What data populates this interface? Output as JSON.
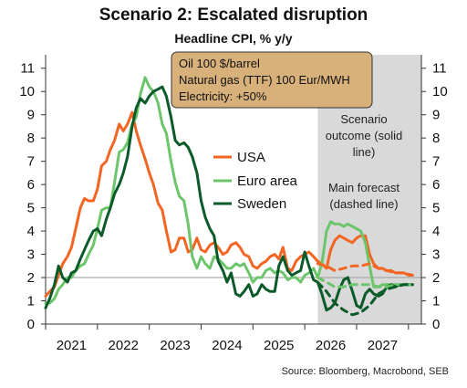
{
  "title": "Scenario 2: Escalated disruption",
  "subtitle": "Headline CPI, % y/y",
  "assumptions": [
    "Oil 100 $/barrel",
    "Natural gas (TTF) 100 Eur/MWH",
    "Electricity: +50%"
  ],
  "shade_note": [
    "Scenario",
    "outcome (solid",
    "line)"
  ],
  "forecast_note": [
    "Main forecast",
    "(dashed line)"
  ],
  "source": "Source: Bloomberg, Macrobond, SEB",
  "colors": {
    "usa": "#f26522",
    "euro": "#6cc56b",
    "sweden": "#0b5a2a",
    "box": "#d7b07a",
    "shade": "#d9d9d9"
  },
  "chart_data": {
    "type": "line",
    "xlim": [
      2020.5,
      2027.75
    ],
    "ylim": [
      0,
      11.5
    ],
    "yticks": [
      0,
      1,
      2,
      3,
      4,
      5,
      6,
      7,
      8,
      9,
      10,
      11
    ],
    "xticks": [
      "2021",
      "2022",
      "2023",
      "2024",
      "2025",
      "2026",
      "2027"
    ],
    "xtick_positions": [
      2021,
      2022,
      2023,
      2024,
      2025,
      2026,
      2027
    ],
    "reference_line": 2,
    "shaded_region": [
      2025.75,
      2027.75
    ],
    "series": [
      {
        "name": "USA",
        "style": "solid",
        "color": "#f26522",
        "x": [
          2020.5,
          2020.58,
          2020.67,
          2020.75,
          2020.83,
          2020.92,
          2021.0,
          2021.08,
          2021.17,
          2021.25,
          2021.33,
          2021.42,
          2021.5,
          2021.58,
          2021.67,
          2021.75,
          2021.83,
          2021.92,
          2022.0,
          2022.08,
          2022.17,
          2022.25,
          2022.33,
          2022.42,
          2022.5,
          2022.58,
          2022.67,
          2022.75,
          2022.83,
          2022.92,
          2023.0,
          2023.08,
          2023.17,
          2023.25,
          2023.33,
          2023.42,
          2023.5,
          2023.58,
          2023.67,
          2023.75,
          2023.83,
          2023.92,
          2024.0,
          2024.08,
          2024.17,
          2024.25,
          2024.33,
          2024.42,
          2024.5,
          2024.58,
          2024.67,
          2024.75,
          2024.83,
          2024.92,
          2025.0,
          2025.08,
          2025.17,
          2025.25,
          2025.33,
          2025.42,
          2025.5,
          2025.58,
          2025.67,
          2025.75,
          2025.83,
          2025.92,
          2026.0,
          2026.08,
          2026.17,
          2026.25,
          2026.33,
          2026.42,
          2026.5,
          2026.58,
          2026.67,
          2026.75,
          2026.83,
          2026.92,
          2027.0,
          2027.08,
          2027.17,
          2027.25,
          2027.33,
          2027.42,
          2027.5,
          2027.58
        ],
        "y": [
          1.2,
          1.4,
          1.6,
          2.1,
          2.6,
          2.9,
          3.3,
          4.1,
          5.0,
          5.4,
          5.3,
          5.3,
          5.8,
          6.8,
          7.0,
          7.5,
          7.9,
          8.6,
          8.3,
          8.6,
          9.1,
          8.3,
          7.7,
          7.1,
          6.5,
          6.0,
          5.2,
          4.9,
          4.0,
          3.1,
          3.2,
          3.7,
          3.7,
          3.1,
          3.2,
          3.7,
          3.2,
          3.1,
          3.4,
          3.5,
          3.3,
          3.0,
          3.1,
          3.4,
          3.5,
          3.3,
          3.0,
          2.9,
          2.5,
          2.4,
          2.6,
          2.7,
          2.9,
          3.0,
          2.8,
          3.3,
          2.4,
          2.3,
          2.7,
          2.9,
          3.0,
          3.1,
          2.9,
          2.7,
          2.6,
          2.4,
          3.2,
          3.6,
          3.8,
          3.7,
          3.6,
          3.5,
          3.7,
          3.8,
          3.8,
          3.0,
          2.6,
          2.4,
          2.4,
          2.3,
          2.3,
          2.2,
          2.2,
          2.2,
          2.1,
          2.1
        ]
      },
      {
        "name": "Euro area",
        "style": "solid",
        "color": "#6cc56b",
        "x": [
          2020.5,
          2020.58,
          2020.67,
          2020.75,
          2020.83,
          2020.92,
          2021.0,
          2021.08,
          2021.17,
          2021.25,
          2021.33,
          2021.42,
          2021.5,
          2021.58,
          2021.67,
          2021.75,
          2021.83,
          2021.92,
          2022.0,
          2022.08,
          2022.17,
          2022.25,
          2022.33,
          2022.42,
          2022.5,
          2022.58,
          2022.67,
          2022.75,
          2022.83,
          2022.92,
          2023.0,
          2023.08,
          2023.17,
          2023.25,
          2023.33,
          2023.42,
          2023.5,
          2023.58,
          2023.67,
          2023.75,
          2023.83,
          2023.92,
          2024.0,
          2024.08,
          2024.17,
          2024.25,
          2024.33,
          2024.42,
          2024.5,
          2024.58,
          2024.67,
          2024.75,
          2024.83,
          2024.92,
          2025.0,
          2025.08,
          2025.17,
          2025.25,
          2025.33,
          2025.42,
          2025.5,
          2025.58,
          2025.67,
          2025.75,
          2025.83,
          2025.92,
          2026.0,
          2026.08,
          2026.17,
          2026.25,
          2026.33,
          2026.42,
          2026.5,
          2026.58,
          2026.67,
          2026.75,
          2026.83,
          2026.92,
          2027.0,
          2027.08,
          2027.17,
          2027.25,
          2027.33,
          2027.42,
          2027.5,
          2027.58
        ],
        "y": [
          0.9,
          0.9,
          1.1,
          1.5,
          1.7,
          2.0,
          2.0,
          2.3,
          2.5,
          2.6,
          3.0,
          3.4,
          4.1,
          4.9,
          5.0,
          5.0,
          6.1,
          7.4,
          7.5,
          7.8,
          8.6,
          8.9,
          9.9,
          10.6,
          10.2,
          10.0,
          9.5,
          8.6,
          8.2,
          7.0,
          6.1,
          5.5,
          5.3,
          4.3,
          2.9,
          2.4,
          2.9,
          2.6,
          2.4,
          2.9,
          2.8,
          2.6,
          2.4,
          2.4,
          2.6,
          2.5,
          2.6,
          2.2,
          1.8,
          2.0,
          2.0,
          2.3,
          2.4,
          2.2,
          2.3,
          2.2,
          1.9,
          2.0,
          2.0,
          1.8,
          2.1,
          2.2,
          2.4,
          2.0,
          2.6,
          4.0,
          4.4,
          4.3,
          4.3,
          4.2,
          4.3,
          4.2,
          4.1,
          4.0,
          3.5,
          2.5,
          1.6,
          1.6,
          1.7,
          1.7,
          1.7,
          1.7,
          1.7,
          1.7,
          1.7,
          1.7
        ]
      },
      {
        "name": "Sweden",
        "style": "solid",
        "color": "#0b5a2a",
        "x": [
          2020.5,
          2020.58,
          2020.67,
          2020.75,
          2020.83,
          2020.92,
          2021.0,
          2021.08,
          2021.17,
          2021.25,
          2021.33,
          2021.42,
          2021.5,
          2021.58,
          2021.67,
          2021.75,
          2021.83,
          2021.92,
          2022.0,
          2022.08,
          2022.17,
          2022.25,
          2022.33,
          2022.42,
          2022.5,
          2022.58,
          2022.67,
          2022.75,
          2022.83,
          2022.92,
          2023.0,
          2023.08,
          2023.17,
          2023.25,
          2023.33,
          2023.42,
          2023.5,
          2023.58,
          2023.67,
          2023.75,
          2023.83,
          2023.92,
          2024.0,
          2024.08,
          2024.17,
          2024.25,
          2024.33,
          2024.42,
          2024.5,
          2024.58,
          2024.67,
          2024.75,
          2024.83,
          2024.92,
          2025.0,
          2025.08,
          2025.17,
          2025.25,
          2025.33,
          2025.42,
          2025.5,
          2025.58,
          2025.67,
          2025.75,
          2025.83,
          2025.92,
          2026.0,
          2026.08,
          2026.17,
          2026.25,
          2026.33,
          2026.42,
          2026.5,
          2026.58,
          2026.67,
          2026.75,
          2026.83,
          2026.92,
          2027.0,
          2027.08,
          2027.17,
          2027.25,
          2027.33,
          2027.42,
          2027.5,
          2027.58
        ],
        "y": [
          0.7,
          1.1,
          1.7,
          2.5,
          2.0,
          1.8,
          2.2,
          2.3,
          2.8,
          3.2,
          3.6,
          4.0,
          4.1,
          3.8,
          4.5,
          5.0,
          5.6,
          6.0,
          6.5,
          7.2,
          8.5,
          9.3,
          9.7,
          9.5,
          9.8,
          10.0,
          10.1,
          10.2,
          9.8,
          8.9,
          7.9,
          7.7,
          7.8,
          7.6,
          7.2,
          6.5,
          5.3,
          4.6,
          4.1,
          3.8,
          2.7,
          2.3,
          1.8,
          2.2,
          1.3,
          1.2,
          1.4,
          1.7,
          1.2,
          1.3,
          1.7,
          1.5,
          1.4,
          1.4,
          2.5,
          2.9,
          2.3,
          2.1,
          2.2,
          2.3,
          3.1,
          2.5,
          1.9,
          1.8,
          1.3,
          0.6,
          0.7,
          0.9,
          1.5,
          1.9,
          2.0,
          1.4,
          0.8,
          0.7,
          1.3,
          1.5,
          1.3,
          1.2,
          1.3,
          1.6,
          1.7,
          1.6,
          1.7,
          1.7,
          1.7,
          1.7
        ]
      },
      {
        "name": "",
        "style": "dashed",
        "color": "#f26522",
        "x": [
          2025.75,
          2025.92,
          2026.08,
          2026.25,
          2026.42,
          2026.58,
          2026.75,
          2026.92,
          2027.08,
          2027.25,
          2027.42,
          2027.58
        ],
        "y": [
          2.6,
          2.5,
          2.3,
          2.4,
          2.5,
          2.5,
          2.6,
          2.4,
          2.3,
          2.2,
          2.2,
          2.1
        ]
      },
      {
        "name": "",
        "style": "dashed",
        "color": "#6cc56b",
        "x": [
          2025.75,
          2025.92,
          2026.08,
          2026.25,
          2026.42,
          2026.58,
          2026.75,
          2026.92,
          2027.08,
          2027.25,
          2027.42,
          2027.58
        ],
        "y": [
          2.0,
          1.8,
          1.6,
          1.6,
          1.7,
          1.7,
          1.7,
          1.6,
          1.6,
          1.7,
          1.7,
          1.7
        ]
      },
      {
        "name": "",
        "style": "dashed",
        "color": "#0b5a2a",
        "x": [
          2025.75,
          2025.92,
          2026.08,
          2026.25,
          2026.42,
          2026.58,
          2026.75,
          2026.92,
          2027.08,
          2027.25,
          2027.42,
          2027.58
        ],
        "y": [
          1.8,
          1.4,
          0.9,
          0.6,
          0.4,
          0.5,
          0.8,
          1.3,
          1.5,
          1.6,
          1.7,
          1.7
        ]
      }
    ]
  }
}
